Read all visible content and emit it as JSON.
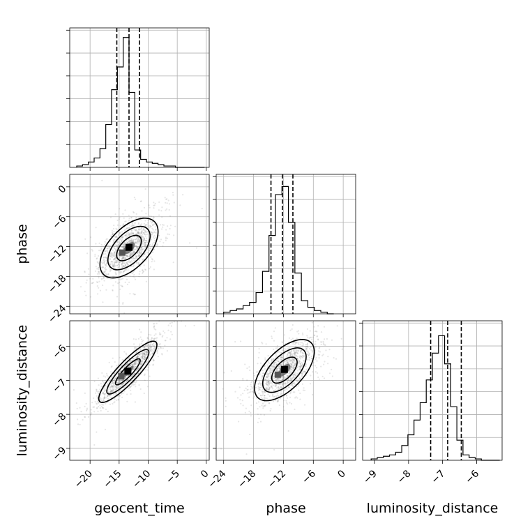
{
  "chart_data": {
    "type": "scatter",
    "description_kind": "corner",
    "parameters": [
      {
        "name": "geocent_time",
        "label": "geocent_time",
        "range": [
          -23.5,
          0.5
        ],
        "ticks": [
          -20,
          -15,
          -10,
          -5,
          0
        ],
        "center": -13.3,
        "sd": 2.5,
        "quantiles": [
          -15.4,
          -13.3,
          -11.5
        ]
      },
      {
        "name": "phase",
        "label": "phase",
        "range": [
          -25.5,
          2.5
        ],
        "ticks": [
          -24,
          -18,
          -12,
          -6,
          0
        ],
        "center": -12.3,
        "sd": 3.0,
        "quantiles": [
          -14.5,
          -12.2,
          -10.1
        ]
      },
      {
        "name": "luminosity_distance",
        "label": "luminosity_distance",
        "range": [
          -9.35,
          -5.25
        ],
        "ticks": [
          -9,
          -8,
          -7,
          -6
        ],
        "center": -6.85,
        "sd": 0.45,
        "quantiles": [
          -7.35,
          -6.85,
          -6.45
        ]
      }
    ],
    "histograms": [
      {
        "param": "geocent_time",
        "bin_start": -22.3,
        "bin_width": 1.0,
        "counts": [
          1,
          2,
          4,
          7,
          14,
          32,
          58,
          75,
          97,
          56,
          13,
          6,
          4,
          3,
          2,
          1,
          1,
          0,
          0,
          0,
          0,
          0
        ],
        "ymax": 100
      },
      {
        "param": "phase",
        "bin_start": -24.0,
        "bin_width": 1.3,
        "counts": [
          1,
          2,
          3,
          5,
          7,
          13,
          26,
          48,
          73,
          78,
          56,
          25,
          8,
          4,
          2,
          1,
          0
        ],
        "ymax": 82
      },
      {
        "param": "luminosity_distance",
        "bin_start": -9.1,
        "bin_width": 0.18,
        "counts": [
          1,
          2,
          3,
          4,
          6,
          11,
          19,
          30,
          43,
          60,
          80,
          93,
          72,
          40,
          15,
          4,
          2,
          1,
          0,
          0,
          0
        ],
        "ymax": 100
      }
    ],
    "pairs": [
      {
        "x": "geocent_time",
        "y": "phase",
        "correlation": 0.55,
        "mode": [
          -13.3,
          -12.3
        ]
      },
      {
        "x": "geocent_time",
        "y": "luminosity_distance",
        "correlation": 0.88,
        "mode": [
          -13.5,
          -6.75
        ]
      },
      {
        "x": "phase",
        "y": "luminosity_distance",
        "correlation": 0.6,
        "mode": [
          -11.8,
          -6.7
        ]
      }
    ],
    "grid": true,
    "quantile_lines": "dashed"
  }
}
